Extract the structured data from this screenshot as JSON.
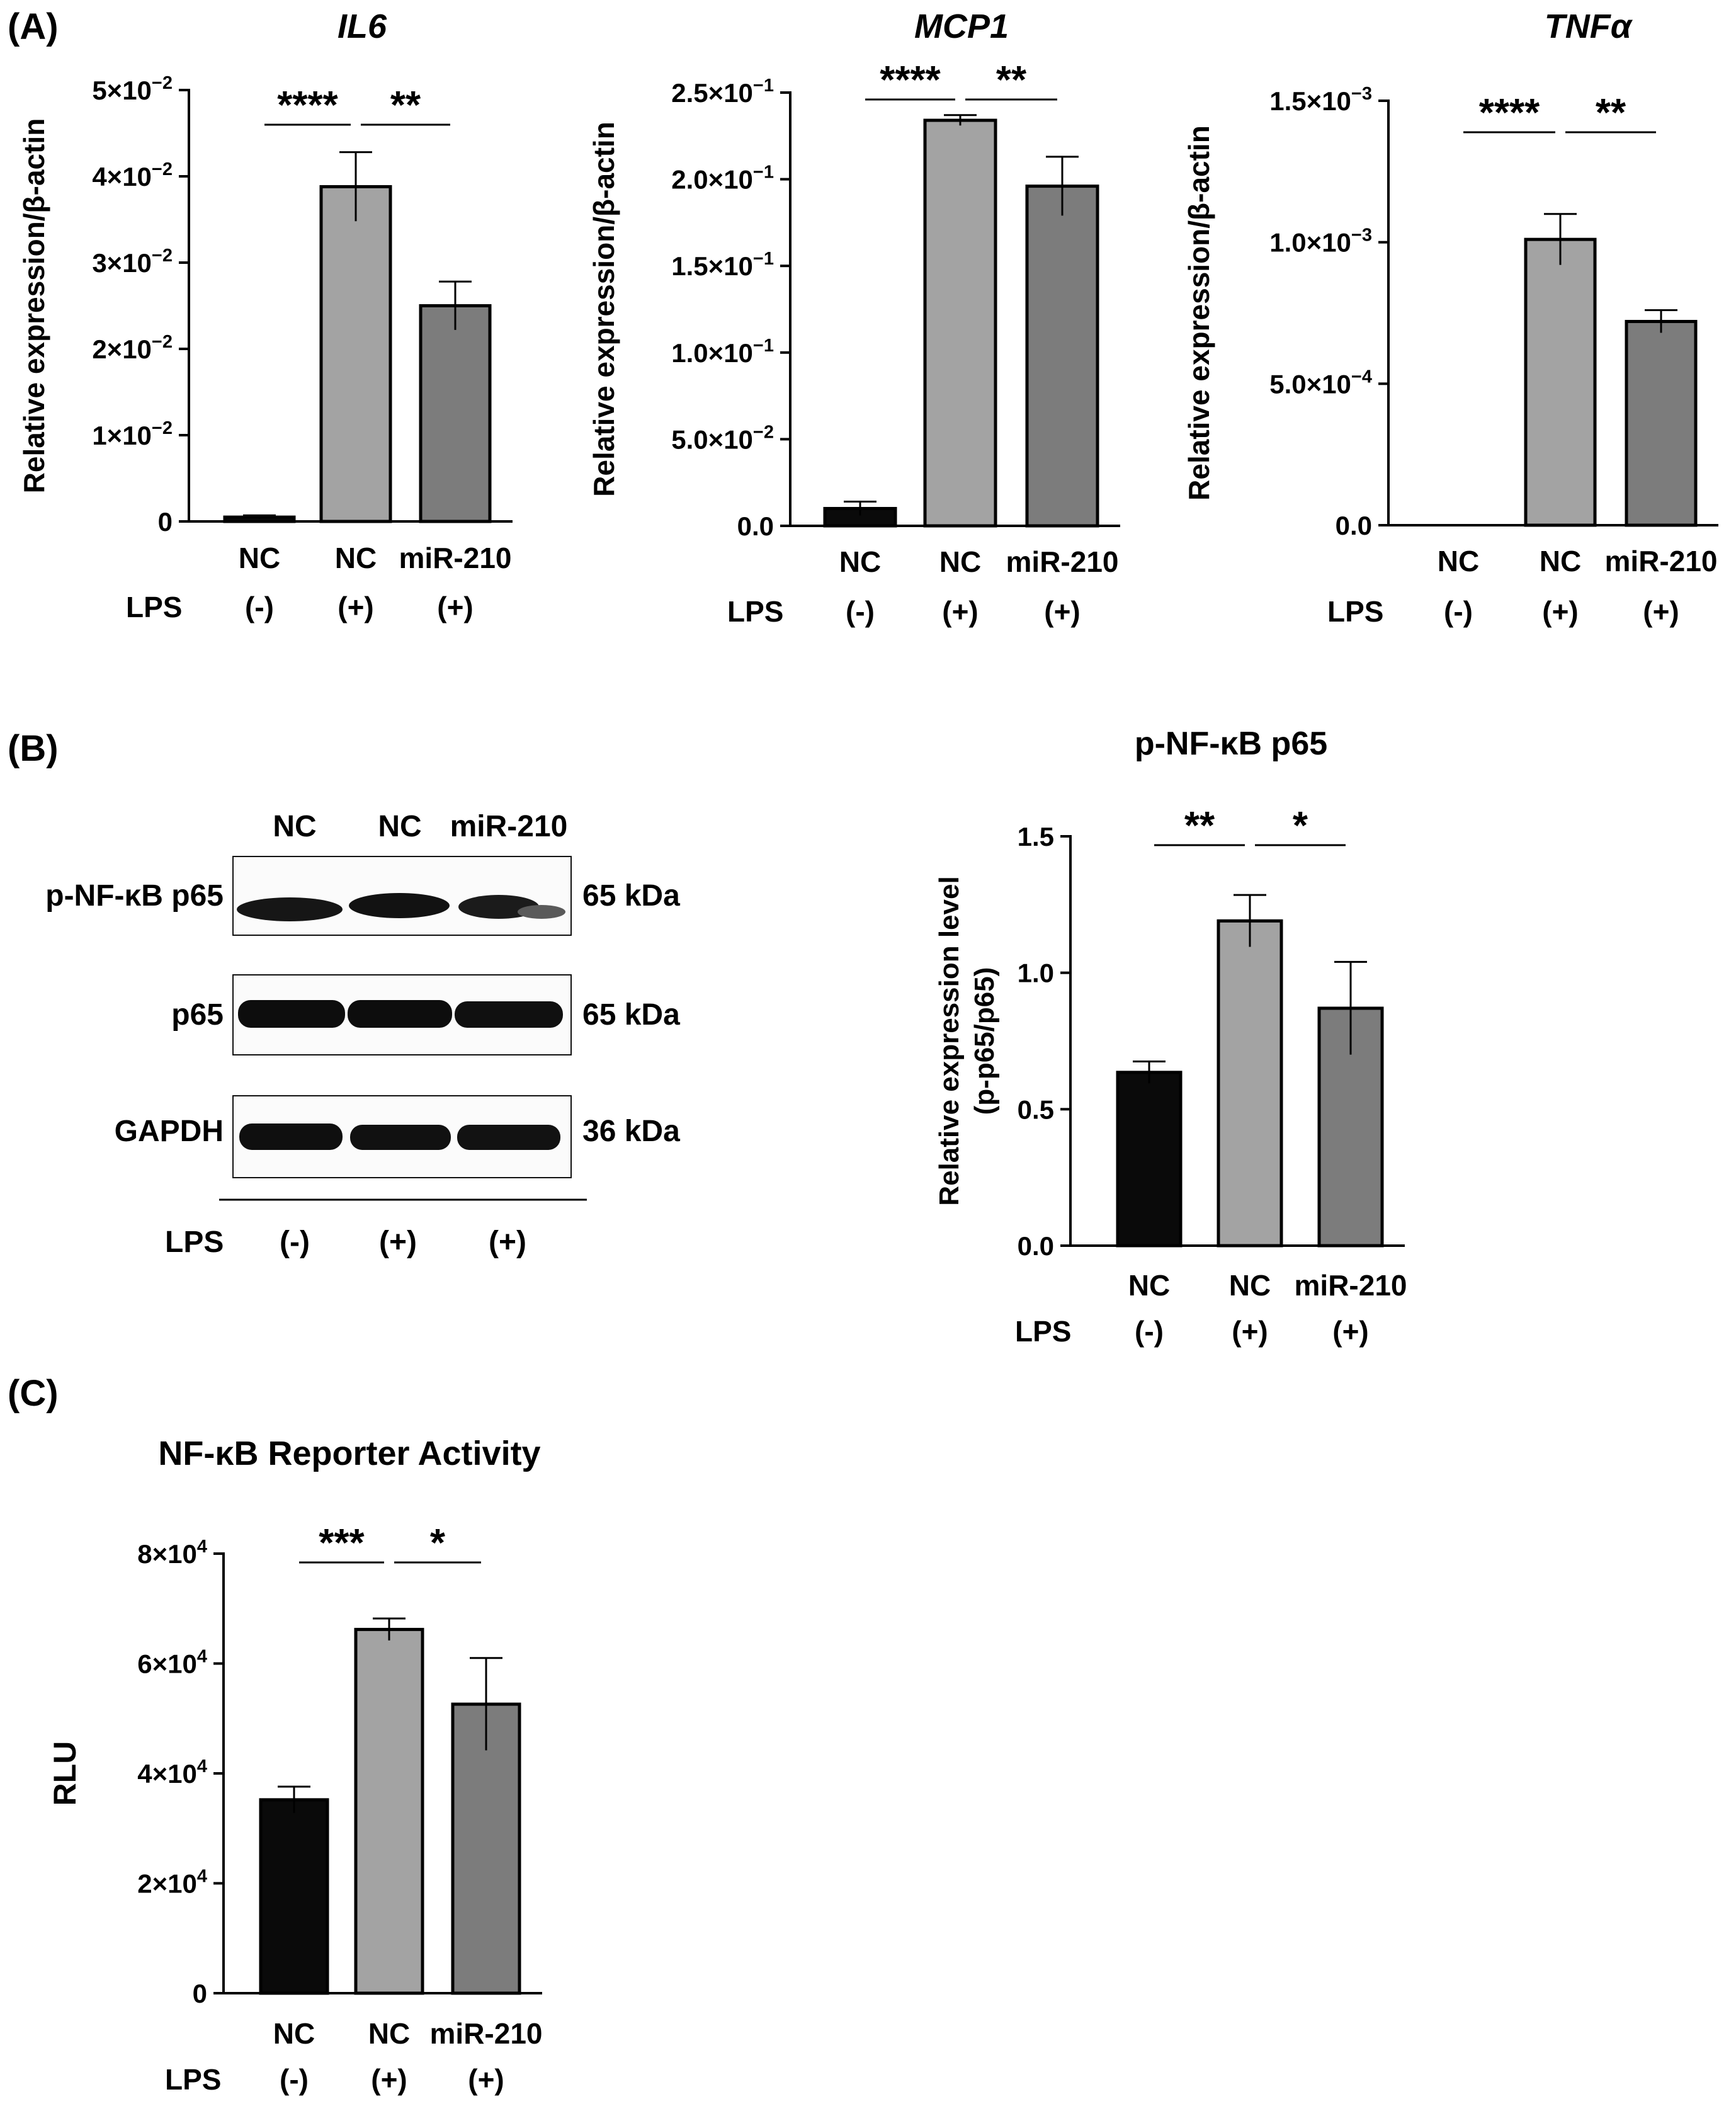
{
  "panels": {
    "A": {
      "label": "(A)"
    },
    "B": {
      "label": "(B)"
    },
    "C": {
      "label": "(C)"
    }
  },
  "lps_label": "LPS",
  "colors": {
    "negative": "#0a0a0a",
    "nc_lps": "#a3a3a3",
    "mir210_lps": "#7c7c7c",
    "axis": "#000000"
  },
  "western_blot": {
    "lane_labels": [
      "NC",
      "NC",
      "miR-210"
    ],
    "lps_labels": [
      "(-)",
      "(+)",
      "(+)"
    ],
    "rows": [
      {
        "protein": "p-NF-κB p65",
        "size": "65 kDa"
      },
      {
        "protein": "p65",
        "size": "65 kDa"
      },
      {
        "protein": "GAPDH",
        "size": "36 kDa"
      }
    ]
  },
  "chart_data": [
    {
      "id": "il6",
      "panel": "A",
      "type": "bar",
      "title": "IL6",
      "title_italic": true,
      "ylabel": "Relative expression/β-actin",
      "categories": [
        "NC",
        "NC",
        "miR-210"
      ],
      "lps": [
        "(-)",
        "(+)",
        "(+)"
      ],
      "values": [
        0.0005,
        0.0388,
        0.025
      ],
      "errors": [
        0.0002,
        0.004,
        0.0028
      ],
      "ylim": [
        0,
        0.05
      ],
      "yticks": [
        {
          "v": 0,
          "m": "0",
          "e": ""
        },
        {
          "v": 0.01,
          "m": "1×10",
          "e": "−2"
        },
        {
          "v": 0.02,
          "m": "2×10",
          "e": "−2"
        },
        {
          "v": 0.03,
          "m": "3×10",
          "e": "−2"
        },
        {
          "v": 0.04,
          "m": "4×10",
          "e": "−2"
        },
        {
          "v": 0.05,
          "m": "5×10",
          "e": "−2"
        }
      ],
      "significance": [
        {
          "from": 0,
          "to": 1,
          "label": "****"
        },
        {
          "from": 1,
          "to": 2,
          "label": "**"
        }
      ]
    },
    {
      "id": "mcp1",
      "panel": "A",
      "type": "bar",
      "title": "MCP1",
      "title_italic": true,
      "ylabel": "Relative expression/β-actin",
      "categories": [
        "NC",
        "NC",
        "miR-210"
      ],
      "lps": [
        "(-)",
        "(+)",
        "(+)"
      ],
      "values": [
        0.01,
        0.234,
        0.196
      ],
      "errors": [
        0.004,
        0.003,
        0.017
      ],
      "ylim": [
        0,
        0.25
      ],
      "yticks": [
        {
          "v": 0,
          "m": "0.0",
          "e": ""
        },
        {
          "v": 0.05,
          "m": "5.0×10",
          "e": "−2"
        },
        {
          "v": 0.1,
          "m": "1.0×10",
          "e": "−1"
        },
        {
          "v": 0.15,
          "m": "1.5×10",
          "e": "−1"
        },
        {
          "v": 0.2,
          "m": "2.0×10",
          "e": "−1"
        },
        {
          "v": 0.25,
          "m": "2.5×10",
          "e": "−1"
        }
      ],
      "significance": [
        {
          "from": 0,
          "to": 1,
          "label": "****"
        },
        {
          "from": 1,
          "to": 2,
          "label": "**"
        }
      ]
    },
    {
      "id": "tnfa",
      "panel": "A",
      "type": "bar",
      "title": "TNFα",
      "title_italic": true,
      "ylabel": "Relative expression/β-actin",
      "categories": [
        "NC",
        "NC",
        "miR-210"
      ],
      "lps": [
        "(-)",
        "(+)",
        "(+)"
      ],
      "values": [
        0.0,
        0.00101,
        0.00072
      ],
      "errors": [
        0.0,
        9e-05,
        4e-05
      ],
      "ylim": [
        0,
        0.0015
      ],
      "yticks": [
        {
          "v": 0,
          "m": "0.0",
          "e": ""
        },
        {
          "v": 0.0005,
          "m": "5.0×10",
          "e": "−4"
        },
        {
          "v": 0.001,
          "m": "1.0×10",
          "e": "−3"
        },
        {
          "v": 0.0015,
          "m": "1.5×10",
          "e": "−3"
        }
      ],
      "significance": [
        {
          "from": 0,
          "to": 1,
          "label": "****"
        },
        {
          "from": 1,
          "to": 2,
          "label": "**"
        }
      ]
    },
    {
      "id": "pnfkb",
      "panel": "B",
      "type": "bar",
      "title": "p-NF-κB p65",
      "title_italic": false,
      "ylabel": "Relative expression level",
      "ylabel2": "(p-p65/p65)",
      "categories": [
        "NC",
        "NC",
        "miR-210"
      ],
      "lps": [
        "(-)",
        "(+)",
        "(+)"
      ],
      "values": [
        0.635,
        1.19,
        0.87
      ],
      "errors": [
        0.04,
        0.095,
        0.17
      ],
      "ylim": [
        0,
        1.5
      ],
      "yticks": [
        {
          "v": 0,
          "m": "0.0",
          "e": ""
        },
        {
          "v": 0.5,
          "m": "0.5",
          "e": ""
        },
        {
          "v": 1.0,
          "m": "1.0",
          "e": ""
        },
        {
          "v": 1.5,
          "m": "1.5",
          "e": ""
        }
      ],
      "significance": [
        {
          "from": 0,
          "to": 1,
          "label": "**"
        },
        {
          "from": 1,
          "to": 2,
          "label": "*"
        }
      ]
    },
    {
      "id": "reporter",
      "panel": "C",
      "type": "bar",
      "title": "NF-κB Reporter Activity",
      "title_italic": false,
      "ylabel": "RLU",
      "categories": [
        "NC",
        "NC",
        "miR-210"
      ],
      "lps": [
        "(-)",
        "(+)",
        "(+)"
      ],
      "values": [
        35200,
        66200,
        52600
      ],
      "errors": [
        2400,
        2000,
        8400
      ],
      "ylim": [
        0,
        80000
      ],
      "yticks": [
        {
          "v": 0,
          "m": "0",
          "e": ""
        },
        {
          "v": 20000,
          "m": "2×10",
          "e": "4"
        },
        {
          "v": 40000,
          "m": "4×10",
          "e": "4"
        },
        {
          "v": 60000,
          "m": "6×10",
          "e": "4"
        },
        {
          "v": 80000,
          "m": "8×10",
          "e": "4"
        }
      ],
      "significance": [
        {
          "from": 0,
          "to": 1,
          "label": "***"
        },
        {
          "from": 1,
          "to": 2,
          "label": "*"
        }
      ]
    }
  ]
}
